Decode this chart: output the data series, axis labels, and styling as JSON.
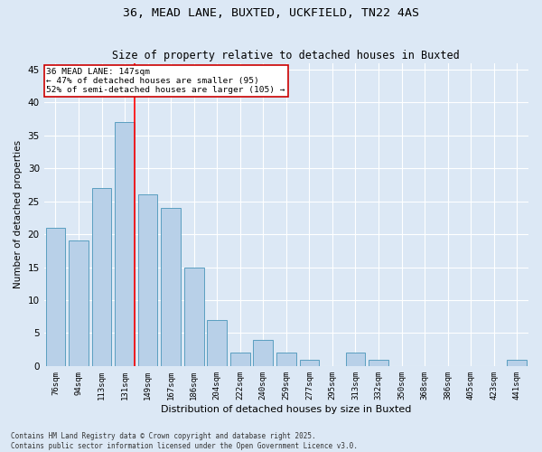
{
  "title1": "36, MEAD LANE, BUXTED, UCKFIELD, TN22 4AS",
  "title2": "Size of property relative to detached houses in Buxted",
  "xlabel": "Distribution of detached houses by size in Buxted",
  "ylabel": "Number of detached properties",
  "categories": [
    "76sqm",
    "94sqm",
    "113sqm",
    "131sqm",
    "149sqm",
    "167sqm",
    "186sqm",
    "204sqm",
    "222sqm",
    "240sqm",
    "259sqm",
    "277sqm",
    "295sqm",
    "313sqm",
    "332sqm",
    "350sqm",
    "368sqm",
    "386sqm",
    "405sqm",
    "423sqm",
    "441sqm"
  ],
  "values": [
    21,
    19,
    27,
    37,
    26,
    24,
    15,
    7,
    2,
    4,
    2,
    1,
    0,
    2,
    1,
    0,
    0,
    0,
    0,
    0,
    1
  ],
  "bar_color": "#b8d0e8",
  "bar_edge_color": "#5a9fc0",
  "red_line_x": 3,
  "annotation_title": "36 MEAD LANE: 147sqm",
  "annotation_line1": "← 47% of detached houses are smaller (95)",
  "annotation_line2": "52% of semi-detached houses are larger (105) →",
  "annotation_box_color": "#ffffff",
  "annotation_box_edge": "#cc0000",
  "ylim": [
    0,
    46
  ],
  "yticks": [
    0,
    5,
    10,
    15,
    20,
    25,
    30,
    35,
    40,
    45
  ],
  "background_color": "#dce8f5",
  "plot_bg_color": "#dce8f5",
  "grid_color": "#ffffff",
  "footer_line1": "Contains HM Land Registry data © Crown copyright and database right 2025.",
  "footer_line2": "Contains public sector information licensed under the Open Government Licence v3.0."
}
